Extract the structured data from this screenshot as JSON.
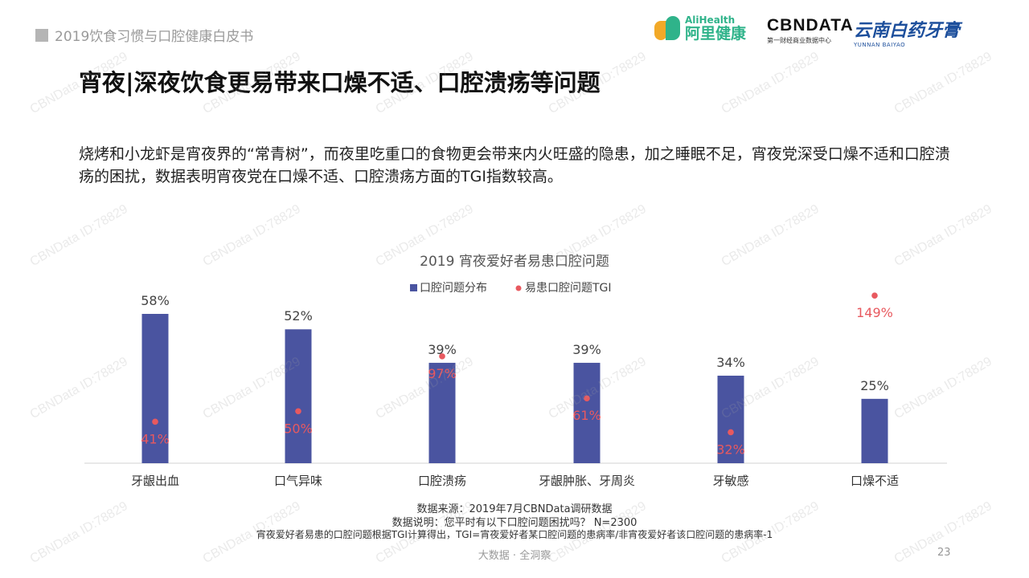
{
  "header": {
    "report_title": "2019饮食习惯与口腔健康白皮书"
  },
  "logos": {
    "alihealth_en": "AliHealth",
    "alihealth_cn": "阿里健康",
    "cbndata_en": "CBNDATA",
    "cbndata_cn": "第一财经商业数据中心",
    "yunnan_cn": "云南白药牙膏",
    "yunnan_en": "YUNNAN BAIYAO"
  },
  "page_title": "宵夜|深夜饮食更易带来口燥不适、口腔溃疡等问题",
  "intro_text": "烧烤和小龙虾是宵夜界的“常青树”，而夜里吃重口的食物更会带来内火旺盛的隐患，加之睡眠不足，宵夜党深受口燥不适和口腔溃疡的困扰，数据表明宵夜党在口燥不适、口腔溃疡方面的TGI指数较高。",
  "chart_data": {
    "type": "bar",
    "title": "2019 宵夜爱好者易患口腔问题",
    "categories": [
      "牙龈出血",
      "口气异味",
      "口腔溃疡",
      "牙龈肿胀、牙周炎",
      "牙敏感",
      "口燥不适"
    ],
    "series": [
      {
        "name": "口腔问题分布",
        "type": "bar",
        "values": [
          58,
          52,
          39,
          39,
          34,
          25
        ],
        "labels": [
          "58%",
          "52%",
          "39%",
          "39%",
          "34%",
          "25%"
        ],
        "color": "#4a54a0"
      },
      {
        "name": "易患口腔问题TGI",
        "type": "scatter",
        "values": [
          41,
          50,
          97,
          61,
          32,
          149
        ],
        "labels": [
          "41%",
          "50%",
          "97%",
          "61%",
          "32%",
          "149%"
        ],
        "color": "#e8595f"
      }
    ],
    "legend_position": "top",
    "grid": false
  },
  "notes": {
    "source": "数据来源：2019年7月CBNData调研数据",
    "description": "数据说明：您平时有以下口腔问题困扰吗？ N=2300",
    "tgi_note": "宵夜爱好者易患的口腔问题根据TGI计算得出，TGI=宵夜爱好者某口腔问题的患病率/非宵夜爱好者该口腔问题的患病率-1"
  },
  "footer": {
    "slogan": "大数据 · 全洞察",
    "page_number": "23"
  },
  "watermark": "CBNData ID:78829"
}
